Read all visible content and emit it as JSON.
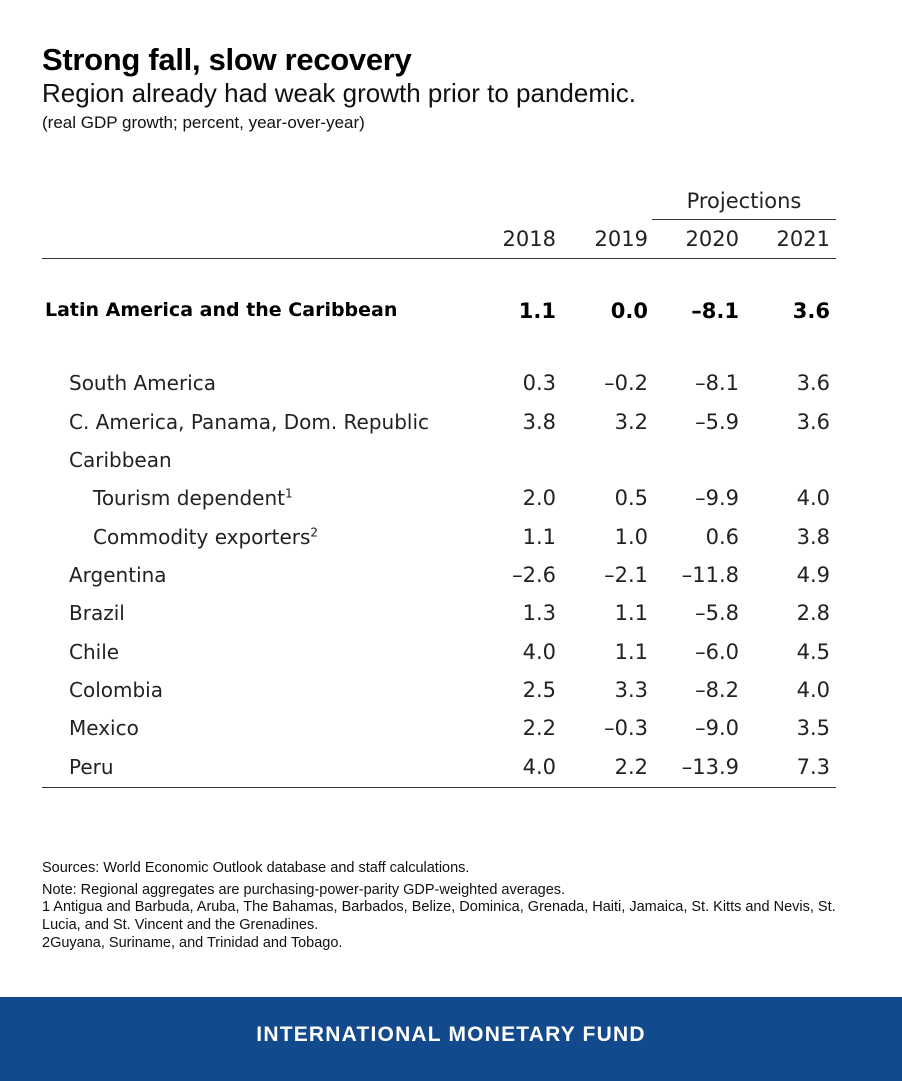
{
  "title": "Strong fall, slow recovery",
  "subtitle": "Region already had weak growth prior to pandemic.",
  "unit": "(real GDP growth; percent, year-over-year)",
  "chart_data": {
    "type": "table",
    "projections_label": "Projections",
    "columns": [
      "2018",
      "2019",
      "2020",
      "2021"
    ],
    "rows": [
      {
        "label": "Latin America and the Caribbean",
        "values": [
          "1.1",
          "0.0",
          "–8.1",
          "3.6"
        ],
        "bold": true,
        "indent": 0
      },
      {
        "label": "South America",
        "values": [
          "0.3",
          "–0.2",
          "–8.1",
          "3.6"
        ],
        "indent": 1
      },
      {
        "label": "C. America, Panama, Dom. Republic",
        "values": [
          "3.8",
          "3.2",
          "–5.9",
          "3.6"
        ],
        "indent": 1
      },
      {
        "label": "Caribbean",
        "values": [
          "",
          "",
          "",
          ""
        ],
        "indent": 1
      },
      {
        "label": "Tourism dependent",
        "sup": "1",
        "values": [
          "2.0",
          "0.5",
          "–9.9",
          "4.0"
        ],
        "indent": 2
      },
      {
        "label": "Commodity exporters",
        "sup": "2",
        "values": [
          "1.1",
          "1.0",
          "0.6",
          "3.8"
        ],
        "indent": 2
      },
      {
        "label": "Argentina",
        "values": [
          "–2.6",
          "–2.1",
          "–11.8",
          "4.9"
        ],
        "indent": 1
      },
      {
        "label": "Brazil",
        "values": [
          "1.3",
          "1.1",
          "–5.8",
          "2.8"
        ],
        "indent": 1
      },
      {
        "label": "Chile",
        "values": [
          "4.0",
          "1.1",
          "–6.0",
          "4.5"
        ],
        "indent": 1
      },
      {
        "label": "Colombia",
        "values": [
          "2.5",
          "3.3",
          "–8.2",
          "4.0"
        ],
        "indent": 1
      },
      {
        "label": "Mexico",
        "values": [
          "2.2",
          "–0.3",
          "–9.0",
          "3.5"
        ],
        "indent": 1
      },
      {
        "label": "Peru",
        "values": [
          "4.0",
          "2.2",
          "–13.9",
          "7.3"
        ],
        "indent": 1
      }
    ]
  },
  "notes": {
    "sources": "Sources: World Economic Outlook database and staff calculations.",
    "note": "Note: Regional aggregates are purchasing-power-parity GDP-weighted averages.",
    "footnote1": "1 Antigua and Barbuda, Aruba, The Bahamas, Barbados, Belize, Dominica, Grenada, Haiti, Jamaica, St. Kitts and Nevis, St. Lucia, and St. Vincent and the Grenadines.",
    "footnote2": "2Guyana, Suriname, and Trinidad and Tobago."
  },
  "footer": {
    "brand": "INTERNATIONAL MONETARY FUND",
    "background_color": "#134a8e"
  }
}
